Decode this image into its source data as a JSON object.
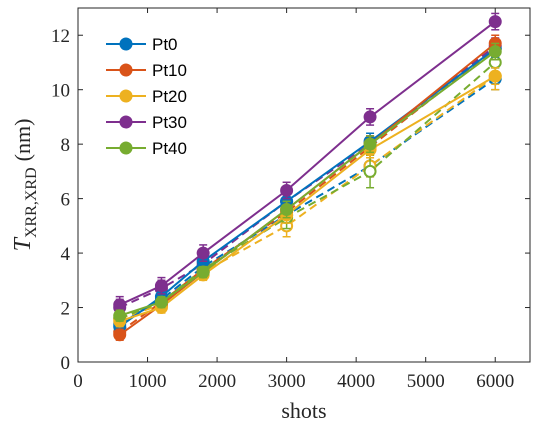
{
  "chart_data": {
    "type": "line",
    "title": "",
    "xlabel": "shots",
    "ylabel": {
      "base": "T",
      "sub": "XRR,XRD",
      "unit": "(nm)"
    },
    "xlim": [
      0,
      6500
    ],
    "ylim": [
      0,
      13
    ],
    "xticks": [
      0,
      1000,
      2000,
      3000,
      4000,
      5000,
      6000
    ],
    "yticks": [
      0,
      2,
      4,
      6,
      8,
      10,
      12
    ],
    "grid": false,
    "legend_position": "top-left",
    "legend_marker": "filled circle",
    "x": [
      600,
      1200,
      1800,
      3000,
      4200,
      6000
    ],
    "series_solid": [
      {
        "name": "Pt0",
        "color": "#0072BD",
        "values": [
          1.3,
          2.4,
          3.7,
          5.9,
          8.1,
          11.5
        ],
        "err": [
          0.2,
          0.2,
          0.3,
          0.3,
          0.3,
          0.3
        ]
      },
      {
        "name": "Pt10",
        "color": "#D95319",
        "values": [
          1.0,
          2.1,
          3.3,
          5.6,
          8.0,
          11.7
        ],
        "err": [
          0.2,
          0.2,
          0.2,
          0.3,
          0.3,
          0.3
        ]
      },
      {
        "name": "Pt20",
        "color": "#EDB120",
        "values": [
          1.5,
          2.0,
          3.2,
          5.4,
          7.8,
          10.5
        ],
        "err": [
          0.2,
          0.2,
          0.2,
          0.3,
          0.3,
          0.3
        ]
      },
      {
        "name": "Pt30",
        "color": "#7E2F8E",
        "values": [
          2.1,
          2.8,
          4.0,
          6.3,
          9.0,
          12.5
        ],
        "err": [
          0.3,
          0.3,
          0.3,
          0.3,
          0.3,
          0.3
        ]
      },
      {
        "name": "Pt40",
        "color": "#77AC30",
        "values": [
          1.7,
          2.2,
          3.3,
          5.6,
          8.0,
          11.4
        ],
        "err": [
          0.2,
          0.2,
          0.2,
          0.3,
          0.3,
          0.3
        ]
      }
    ],
    "series_dashed": [
      {
        "color": "#0072BD",
        "values": [
          1.4,
          2.3,
          3.5,
          5.4,
          7.2,
          10.4
        ],
        "err": [
          0.2,
          0.2,
          0.3,
          0.3,
          0.4,
          0.4
        ]
      },
      {
        "color": "#D95319",
        "values": [
          1.1,
          2.2,
          3.4,
          5.5,
          7.9,
          11.5
        ],
        "err": [
          0.2,
          0.2,
          0.2,
          0.3,
          0.3,
          0.3
        ]
      },
      {
        "color": "#EDB120",
        "values": [
          1.6,
          2.1,
          3.3,
          5.0,
          7.2,
          10.5
        ],
        "err": [
          0.2,
          0.2,
          0.2,
          0.4,
          0.4,
          0.5
        ]
      },
      {
        "color": "#7E2F8E",
        "values": [
          2.0,
          2.7,
          3.6,
          5.9,
          8.0,
          11.6
        ],
        "err": [
          0.3,
          0.3,
          0.3,
          0.3,
          0.3,
          0.3
        ]
      },
      {
        "color": "#77AC30",
        "values": [
          1.6,
          2.2,
          3.4,
          5.3,
          7.0,
          11.0
        ],
        "err": [
          0.2,
          0.2,
          0.3,
          0.4,
          0.6,
          0.5
        ]
      }
    ]
  }
}
